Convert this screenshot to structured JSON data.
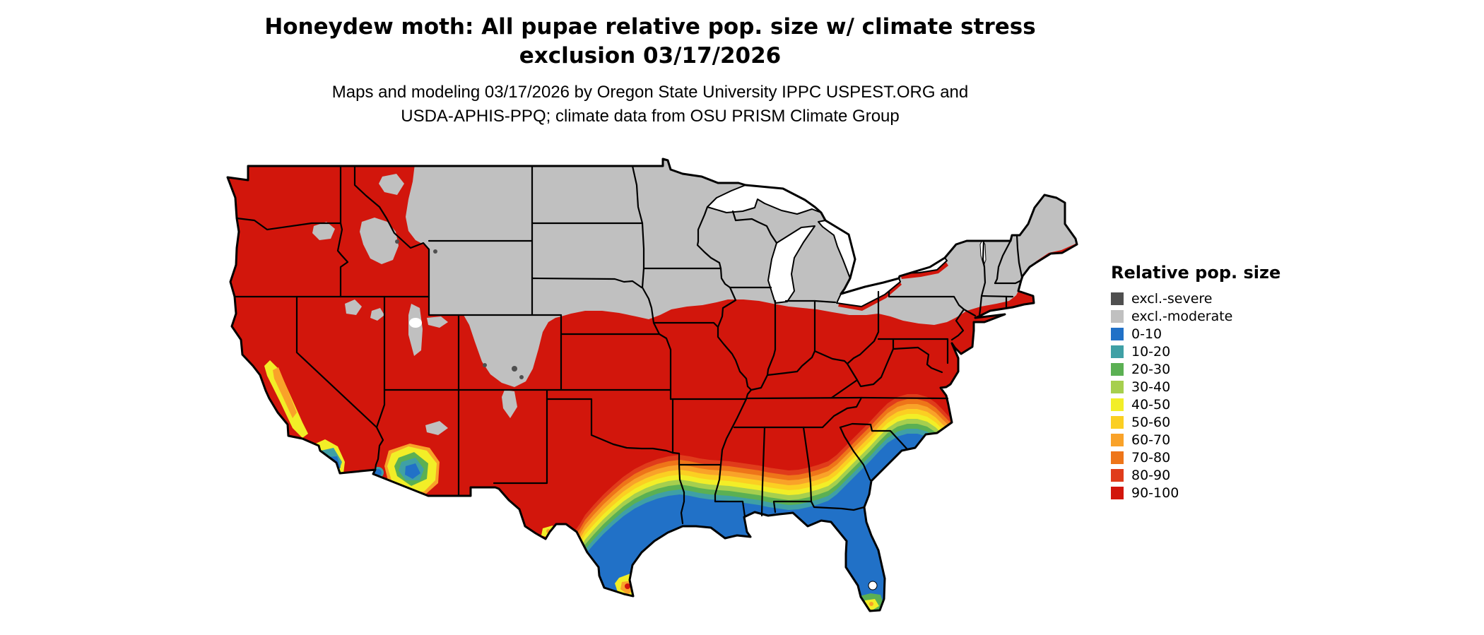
{
  "header": {
    "title_line1": "Honeydew moth: All pupae relative pop. size w/ climate stress",
    "title_line2": "exclusion 03/17/2026",
    "subtitle_line1": "Maps and modeling 03/17/2026 by Oregon State University IPPC USPEST.ORG and",
    "subtitle_line2": "USDA-APHIS-PPQ; climate data from OSU PRISM Climate Group"
  },
  "legend": {
    "title": "Relative pop. size",
    "items": [
      {
        "label": "excl.-severe",
        "key": "excl_severe",
        "color": "#4f4f4f"
      },
      {
        "label": "excl.-moderate",
        "key": "excl_moderate",
        "color": "#c0c0c0"
      },
      {
        "label": "0-10",
        "key": "v0_10",
        "color": "#2171c7"
      },
      {
        "label": "10-20",
        "key": "v10_20",
        "color": "#3fa0a5"
      },
      {
        "label": "20-30",
        "key": "v20_30",
        "color": "#5bb053"
      },
      {
        "label": "30-40",
        "key": "v30_40",
        "color": "#a6cf4e"
      },
      {
        "label": "40-50",
        "key": "v40_50",
        "color": "#f2ee27"
      },
      {
        "label": "50-60",
        "key": "v50_60",
        "color": "#fbcf22"
      },
      {
        "label": "60-70",
        "key": "v60_70",
        "color": "#f9a229"
      },
      {
        "label": "70-80",
        "key": "v70_80",
        "color": "#ee7519"
      },
      {
        "label": "80-90",
        "key": "v80_90",
        "color": "#e03c1b"
      },
      {
        "label": "90-100",
        "key": "v90_100",
        "color": "#d2160c"
      }
    ]
  }
}
